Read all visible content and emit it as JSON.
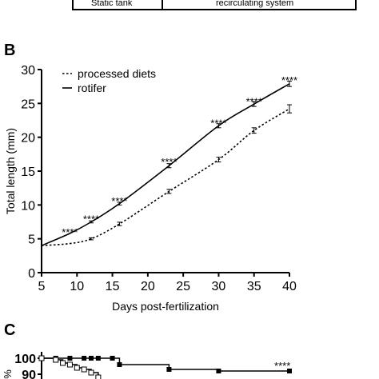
{
  "top_table": {
    "left_cell": "Static tank",
    "right_cell": "recirculating system"
  },
  "panel_b": {
    "letter": "B"
  },
  "panel_c": {
    "letter": "C"
  },
  "chart_data": [
    {
      "type": "line",
      "title": "",
      "xlabel": "Days post-fertilization",
      "ylabel": "Total length (mm)",
      "xlim": [
        5,
        40
      ],
      "ylim": [
        0,
        30
      ],
      "xticks": [
        5,
        10,
        15,
        20,
        25,
        30,
        35,
        40
      ],
      "yticks": [
        0,
        5,
        10,
        15,
        20,
        25,
        30
      ],
      "grid": false,
      "legend_position": "top-left",
      "series": [
        {
          "name": "processed diets",
          "style": "dashed",
          "x": [
            5,
            9,
            12,
            16,
            23,
            30,
            35,
            40
          ],
          "y": [
            4.0,
            4.3,
            5.0,
            7.2,
            12.0,
            16.7,
            21.0,
            24.2
          ],
          "error": [
            0,
            0,
            0.15,
            0.25,
            0.3,
            0.35,
            0.4,
            0.6
          ]
        },
        {
          "name": "rotifer",
          "style": "solid",
          "x": [
            5,
            9,
            12,
            16,
            23,
            30,
            35,
            40
          ],
          "y": [
            4.0,
            5.8,
            7.5,
            10.2,
            15.8,
            21.7,
            24.9,
            27.9
          ],
          "error": [
            0,
            0,
            0.15,
            0.2,
            0.3,
            0.3,
            0.35,
            0.4
          ]
        }
      ],
      "annotations": [
        {
          "x": 9,
          "y": 6.4,
          "text": "****"
        },
        {
          "x": 12,
          "y": 8.3,
          "text": "****"
        },
        {
          "x": 16,
          "y": 11.0,
          "text": "****"
        },
        {
          "x": 23,
          "y": 16.8,
          "text": "****"
        },
        {
          "x": 30,
          "y": 22.5,
          "text": "****"
        },
        {
          "x": 35,
          "y": 25.7,
          "text": "****"
        },
        {
          "x": 40,
          "y": 28.8,
          "text": "****"
        }
      ]
    },
    {
      "type": "line",
      "title": "",
      "xlabel": "",
      "ylabel": "%",
      "yticks": [
        90,
        100
      ],
      "ylim": [
        80,
        100
      ],
      "grid": false,
      "series": [
        {
          "name": "",
          "marker": "filled-square",
          "style": "step",
          "x": [
            5,
            7,
            9,
            11,
            12,
            13,
            15,
            16,
            23,
            30,
            40
          ],
          "y": [
            100,
            100,
            100,
            100,
            100,
            100,
            100,
            96,
            93,
            92,
            92
          ]
        },
        {
          "name": "",
          "marker": "open-square",
          "style": "step",
          "x": [
            5,
            7,
            8,
            9,
            10,
            11,
            12,
            13
          ],
          "y": [
            100,
            99,
            97,
            96,
            94,
            93,
            91,
            88
          ]
        }
      ],
      "annotations": [
        {
          "x": 39,
          "y": 95,
          "text": "****"
        }
      ]
    }
  ]
}
